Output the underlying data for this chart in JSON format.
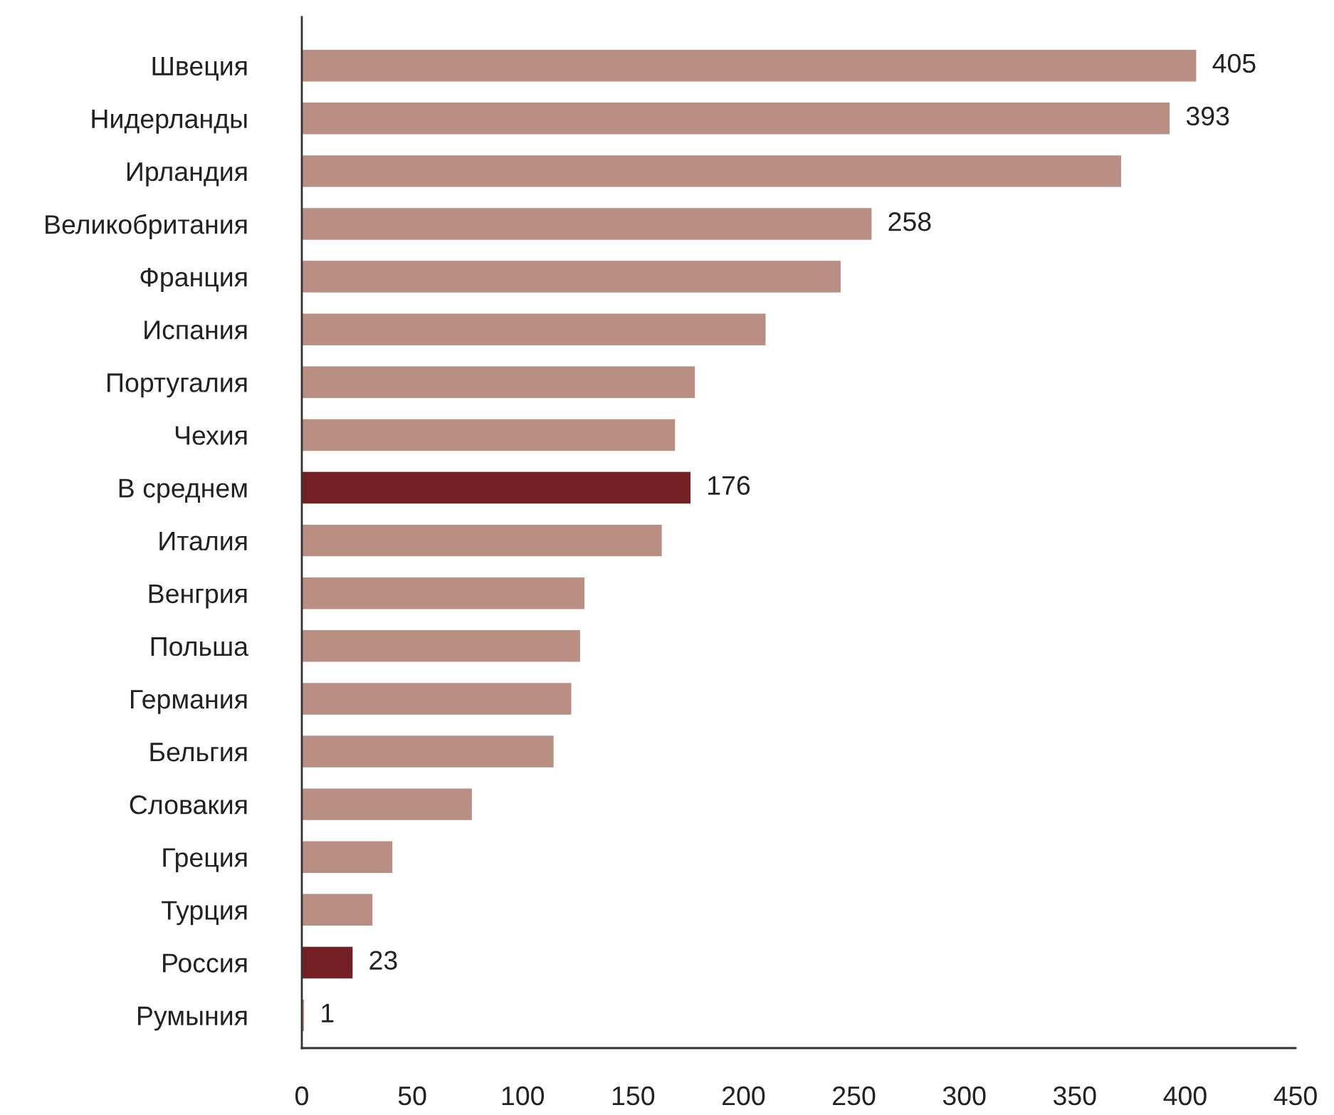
{
  "chart_data": {
    "type": "bar",
    "orientation": "horizontal",
    "categories": [
      "Швеция",
      "Нидерланды",
      "Ирландия",
      "Великобритания",
      "Франция",
      "Испания",
      "Португалия",
      "Чехия",
      "В среднем",
      "Италия",
      "Венгрия",
      "Польша",
      "Германия",
      "Бельгия",
      "Словакия",
      "Греция",
      "Турция",
      "Россия",
      "Румыния"
    ],
    "values": [
      405,
      393,
      371,
      258,
      244,
      210,
      178,
      169,
      176,
      163,
      128,
      126,
      122,
      114,
      77,
      41,
      32,
      23,
      1
    ],
    "colors": [
      "#b98f83",
      "#b98f83",
      "#b98f83",
      "#b98f83",
      "#b98f83",
      "#b98f83",
      "#b98f83",
      "#b98f83",
      "#741f23",
      "#b98f83",
      "#b98f83",
      "#b98f83",
      "#b98f83",
      "#b98f83",
      "#b98f83",
      "#b98f83",
      "#b98f83",
      "#741f23",
      "#b98f83"
    ],
    "value_labels": [
      "405",
      "393",
      null,
      "258",
      null,
      null,
      null,
      null,
      "176",
      null,
      null,
      null,
      null,
      null,
      null,
      null,
      null,
      "23",
      "1"
    ],
    "xlim": [
      0,
      450
    ],
    "xticks": [
      0,
      50,
      100,
      150,
      200,
      250,
      300,
      350,
      400,
      450
    ]
  }
}
